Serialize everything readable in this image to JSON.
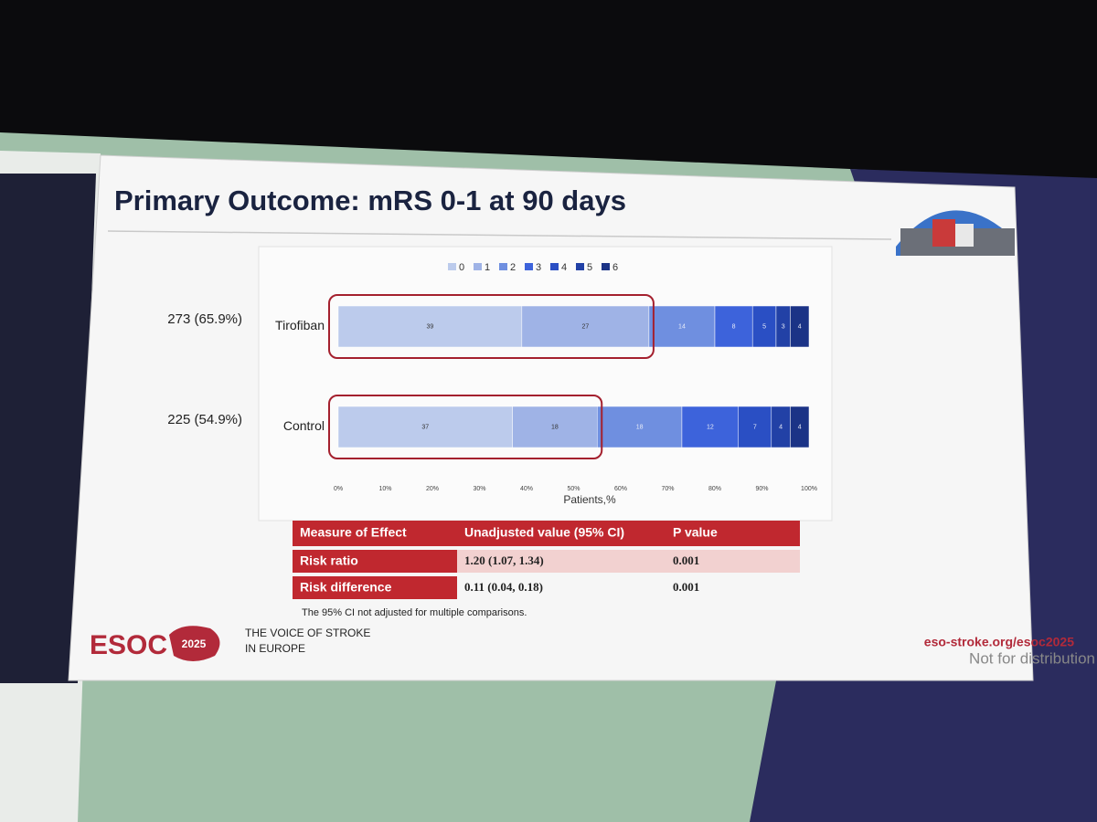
{
  "chart_data": {
    "type": "bar",
    "orientation": "horizontal",
    "stacked": true,
    "categories": [
      "Tirofiban",
      "Control"
    ],
    "category_annotations": [
      "273 (65.9%)",
      "225 (54.9%)"
    ],
    "series": [
      {
        "name": "0",
        "color": "#bccbec",
        "values": [
          39,
          37
        ]
      },
      {
        "name": "1",
        "color": "#9fb3e6",
        "values": [
          27,
          18
        ]
      },
      {
        "name": "2",
        "color": "#6f8fe0",
        "values": [
          14,
          18
        ]
      },
      {
        "name": "3",
        "color": "#3d63db",
        "values": [
          8,
          12
        ]
      },
      {
        "name": "4",
        "color": "#2a4fc4",
        "values": [
          5,
          7
        ]
      },
      {
        "name": "5",
        "color": "#2241a6",
        "values": [
          3,
          4
        ]
      },
      {
        "name": "6",
        "color": "#1b3386",
        "values": [
          4,
          4
        ]
      }
    ],
    "xlim": [
      0,
      100
    ],
    "xticks": [
      {
        "value": 0,
        "label": "0%"
      },
      {
        "value": 10,
        "label": "10%"
      },
      {
        "value": 20,
        "label": "20%"
      },
      {
        "value": 30,
        "label": "30%"
      },
      {
        "value": 40,
        "label": "40%"
      },
      {
        "value": 50,
        "label": "50%"
      },
      {
        "value": 60,
        "label": "60%"
      },
      {
        "value": 70,
        "label": "70%"
      },
      {
        "value": 80,
        "label": "80%"
      },
      {
        "value": 90,
        "label": "90%"
      },
      {
        "value": 100,
        "label": "100%"
      }
    ],
    "xlabel": "Patients,%",
    "legend": "top",
    "highlight_series": 2
  },
  "slide": {
    "title": "Primary Outcome: mRS 0-1 at 90 days",
    "table": {
      "header": [
        "Measure of Effect",
        "Unadjusted value (95% CI)",
        "P value"
      ],
      "rows": [
        [
          "Risk ratio",
          "1.20 (1.07, 1.34)",
          "0.001"
        ],
        [
          "Risk difference",
          "0.11 (0.04, 0.18)",
          "0.001"
        ]
      ]
    },
    "footnote": "The 95% CI not adjusted for multiple comparisons.",
    "footer": {
      "logo": "ESOC",
      "logo_year": "2025",
      "tagline": [
        "THE VOICE OF STROKE",
        "IN EUROPE"
      ],
      "url": "eso-stroke.org/esoc2025",
      "notice": "Not for distribution"
    }
  }
}
